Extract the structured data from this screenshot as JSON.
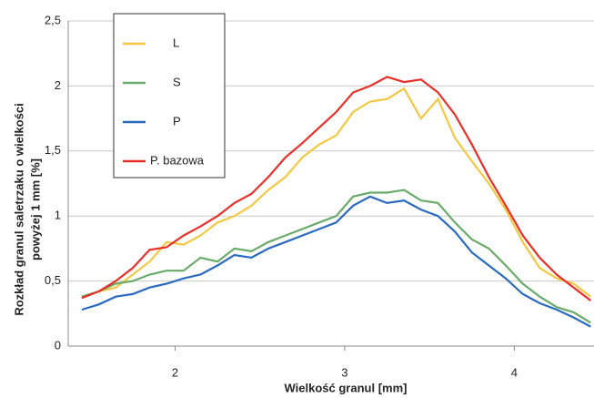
{
  "chart_data": {
    "type": "line",
    "xlabel": "Wielkość granul [mm]",
    "ylabel": [
      "Rozkład granul saletrzaku o wielkości",
      "powyżej 1 mm [%]"
    ],
    "x": [
      1.45,
      1.55,
      1.65,
      1.75,
      1.85,
      1.95,
      2.05,
      2.15,
      2.25,
      2.35,
      2.45,
      2.55,
      2.65,
      2.75,
      2.85,
      2.95,
      3.05,
      3.15,
      3.25,
      3.35,
      3.45,
      3.55,
      3.65,
      3.75,
      3.85,
      3.95,
      4.05,
      4.15,
      4.25,
      4.35,
      4.45
    ],
    "series": [
      {
        "name": "L",
        "color": "#f5c842",
        "values": [
          0.38,
          0.42,
          0.45,
          0.55,
          0.65,
          0.8,
          0.78,
          0.85,
          0.95,
          1.0,
          1.08,
          1.2,
          1.3,
          1.45,
          1.55,
          1.62,
          1.8,
          1.88,
          1.9,
          1.98,
          1.75,
          1.9,
          1.6,
          1.42,
          1.25,
          1.05,
          0.8,
          0.6,
          0.52,
          0.48,
          0.38
        ]
      },
      {
        "name": "S",
        "color": "#6aab6a",
        "values": [
          0.38,
          0.42,
          0.48,
          0.5,
          0.55,
          0.58,
          0.58,
          0.68,
          0.65,
          0.75,
          0.73,
          0.8,
          0.85,
          0.9,
          0.95,
          1.0,
          1.15,
          1.18,
          1.18,
          1.2,
          1.12,
          1.1,
          0.95,
          0.82,
          0.75,
          0.62,
          0.48,
          0.38,
          0.3,
          0.26,
          0.18
        ]
      },
      {
        "name": "P",
        "color": "#2a6bbf",
        "values": [
          0.28,
          0.32,
          0.38,
          0.4,
          0.45,
          0.48,
          0.52,
          0.55,
          0.62,
          0.7,
          0.68,
          0.75,
          0.8,
          0.85,
          0.9,
          0.95,
          1.08,
          1.15,
          1.1,
          1.12,
          1.05,
          1.0,
          0.88,
          0.72,
          0.62,
          0.52,
          0.4,
          0.33,
          0.28,
          0.22,
          0.15
        ]
      },
      {
        "name": "P. bazowa",
        "color": "#e8302a",
        "values": [
          0.37,
          0.42,
          0.5,
          0.6,
          0.74,
          0.76,
          0.85,
          0.92,
          1.0,
          1.1,
          1.17,
          1.3,
          1.45,
          1.56,
          1.68,
          1.8,
          1.95,
          2.0,
          2.07,
          2.03,
          2.05,
          1.95,
          1.78,
          1.55,
          1.3,
          1.08,
          0.85,
          0.68,
          0.55,
          0.45,
          0.35
        ]
      }
    ],
    "xlim": [
      1.37,
      4.47
    ],
    "ylim": [
      0,
      2.5
    ],
    "xticks": [
      2,
      3,
      4
    ],
    "yticks": [
      0,
      {
        "value": 0.5,
        "label": "0,5"
      },
      1,
      {
        "value": 1.5,
        "label": "1,5"
      },
      2,
      {
        "value": 2.5,
        "label": "2,5"
      }
    ],
    "grid": true,
    "legend": "upper left"
  }
}
